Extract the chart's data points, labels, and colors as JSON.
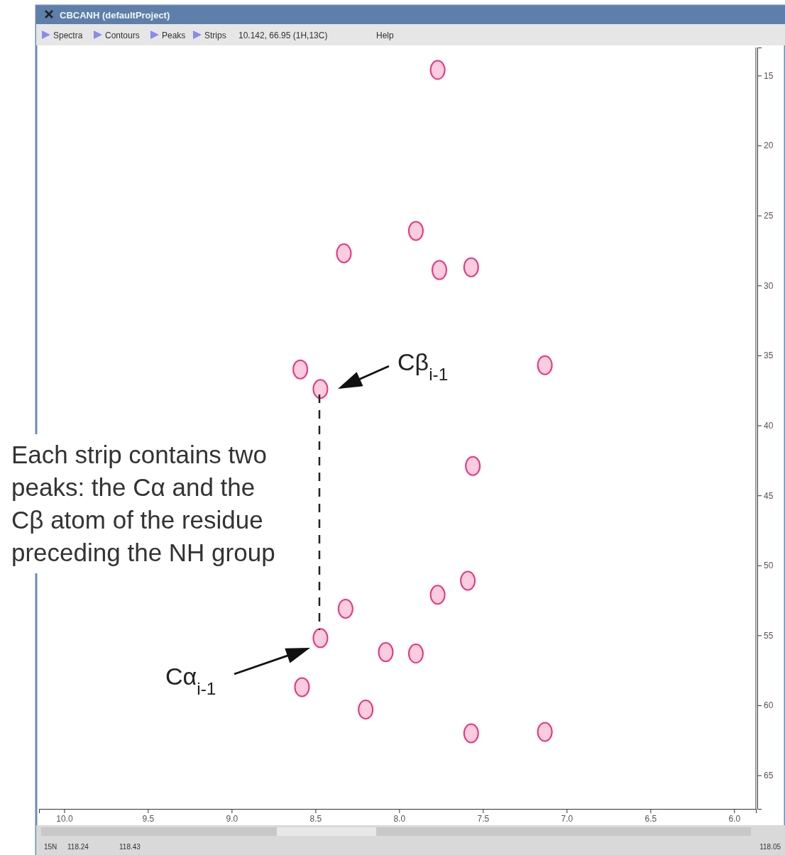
{
  "chart_data": {
    "type": "scatter",
    "title": "CBCANH (defaultProject)",
    "x": [
      7.77,
      7.9,
      8.33,
      7.76,
      7.57,
      8.59,
      8.47,
      7.13,
      7.56,
      7.59,
      7.77,
      8.32,
      8.47,
      8.08,
      7.9,
      8.58,
      8.2,
      7.57,
      7.13
    ],
    "values": [
      14.6,
      26.1,
      27.7,
      28.9,
      28.7,
      36.0,
      37.4,
      35.7,
      42.9,
      51.1,
      52.1,
      53.1,
      55.2,
      56.2,
      56.3,
      58.7,
      60.3,
      62.0,
      61.9
    ],
    "color": "#e8357f",
    "marker": "circle",
    "legend": false,
    "grid": false,
    "xlim": [
      10.15,
      5.87
    ],
    "xticks": [
      {
        "value": 10,
        "label": "10.0"
      },
      {
        "value": 9.5,
        "label": "9.5"
      },
      {
        "value": 9,
        "label": "9.0"
      },
      {
        "value": 8.5,
        "label": "8.5"
      },
      {
        "value": 8,
        "label": "8.0"
      },
      {
        "value": 7.5,
        "label": "7.5"
      },
      {
        "value": 7,
        "label": "7.0"
      },
      {
        "value": 6.5,
        "label": "6.5"
      },
      {
        "value": 6,
        "label": "6.0"
      }
    ],
    "ylim": [
      67.4,
      13
    ],
    "yticks": [
      15,
      20,
      25,
      30,
      35,
      40,
      45,
      50,
      55,
      60,
      65
    ],
    "annotations": [
      "Spectra",
      "Contours",
      "Peaks",
      "Strips",
      "10.142,  66.95  (1H,13C)",
      "Help",
      "15N",
      "118.24",
      "118.43",
      "118.05",
      "Each strip contains two peaks: the Cα and the Cβ atom of the residue preceding the NH group",
      "Cβ$_{i-1}$",
      "Cα$_{i-1}$"
    ]
  }
}
